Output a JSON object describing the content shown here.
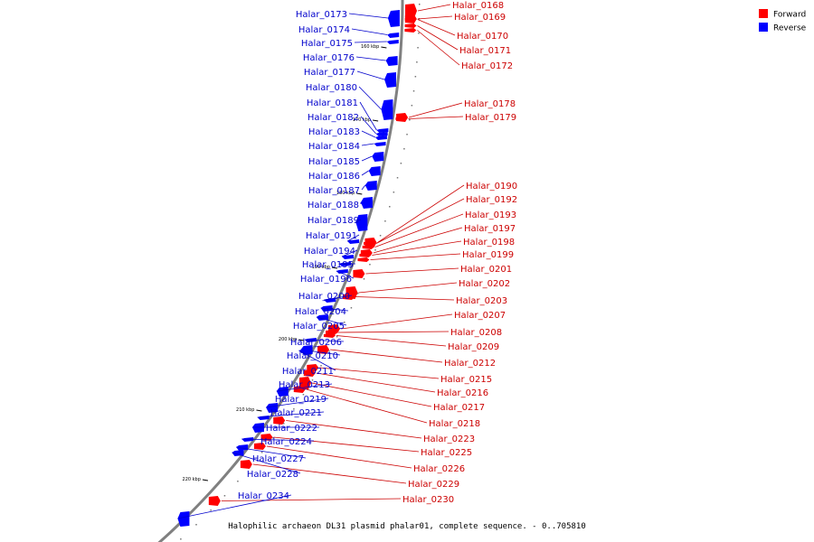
{
  "caption": "Halophilic archaeon DL31 plasmid phalar01, complete sequence. - 0..705810",
  "colors": {
    "forward": "#ff0000",
    "reverse": "#0000ff",
    "backbone": "#808080",
    "forward_line": "#cc0000",
    "reverse_line": "#0000cc"
  },
  "legend": [
    {
      "label": "Forward",
      "color": "#ff0000"
    },
    {
      "label": "Reverse",
      "color": "#0000ff"
    }
  ],
  "ticks": [
    "160 kbp",
    "170 kbp",
    "180 kbp",
    "190 kbp",
    "200 kbp",
    "210 kbp",
    "220 kbp"
  ],
  "forward_genes": [
    "Halar_0168",
    "Halar_0169",
    "Halar_0170",
    "Halar_0171",
    "Halar_0172",
    "Halar_0178",
    "Halar_0179",
    "Halar_0190",
    "Halar_0192",
    "Halar_0193",
    "Halar_0197",
    "Halar_0198",
    "Halar_0199",
    "Halar_0201",
    "Halar_0202",
    "Halar_0203",
    "Halar_0207",
    "Halar_0208",
    "Halar_0209",
    "Halar_0212",
    "Halar_0215",
    "Halar_0216",
    "Halar_0217",
    "Halar_0218",
    "Halar_0223",
    "Halar_0225",
    "Halar_0226",
    "Halar_0229",
    "Halar_0230"
  ],
  "reverse_genes": [
    "Halar_0173",
    "Halar_0174",
    "Halar_0175",
    "Halar_0176",
    "Halar_0177",
    "Halar_0180",
    "Halar_0181",
    "Halar_0182",
    "Halar_0183",
    "Halar_0184",
    "Halar_0185",
    "Halar_0186",
    "Halar_0187",
    "Halar_0188",
    "Halar_0189",
    "Halar_0191",
    "Halar_0194",
    "Halar_0195",
    "Halar_0196",
    "Halar_0200",
    "Halar_0204",
    "Halar_0205",
    "Halar_0206",
    "Halar_0210",
    "Halar_0211",
    "Halar_0213",
    "Halar_0219",
    "Halar_0221",
    "Halar_0222",
    "Halar_0224",
    "Halar_0227",
    "Halar_0228",
    "Halar_0234"
  ]
}
